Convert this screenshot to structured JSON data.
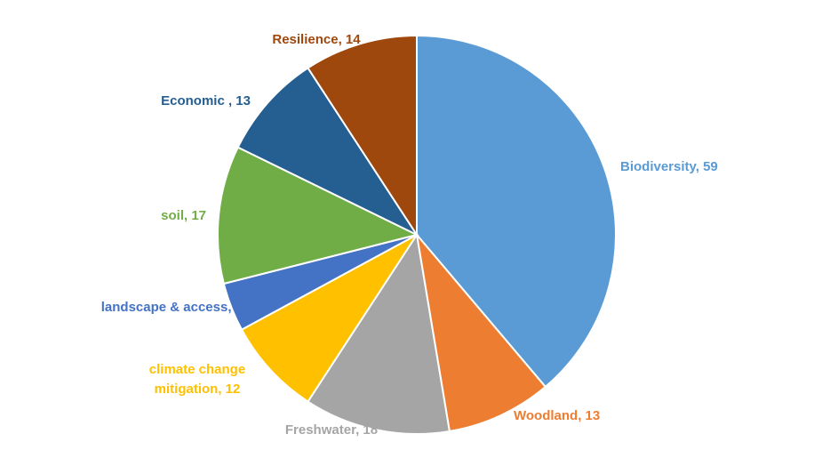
{
  "chart_data": {
    "type": "pie",
    "title": "",
    "slices": [
      {
        "label_lines": [
          "Biodiversity, 59"
        ],
        "value": 59,
        "color": "#5B9BD5"
      },
      {
        "label_lines": [
          "Woodland, 13"
        ],
        "value": 13,
        "color": "#ED7D31"
      },
      {
        "label_lines": [
          "Freshwater, 18"
        ],
        "value": 18,
        "color": "#A5A5A5"
      },
      {
        "label_lines": [
          "climate change",
          "mitigation, 12"
        ],
        "value": 12,
        "color": "#FFC000"
      },
      {
        "label_lines": [
          "landscape & access, 6"
        ],
        "value": 6,
        "color": "#4472C4"
      },
      {
        "label_lines": [
          "soil, 17"
        ],
        "value": 17,
        "color": "#70AD47"
      },
      {
        "label_lines": [
          "Economic , 13"
        ],
        "value": 13,
        "color": "#255E91"
      },
      {
        "label_lines": [
          "Resilience, 14"
        ],
        "value": 14,
        "color": "#9E480E"
      }
    ],
    "legend": "none",
    "data_labels": "outside, category name and value"
  }
}
